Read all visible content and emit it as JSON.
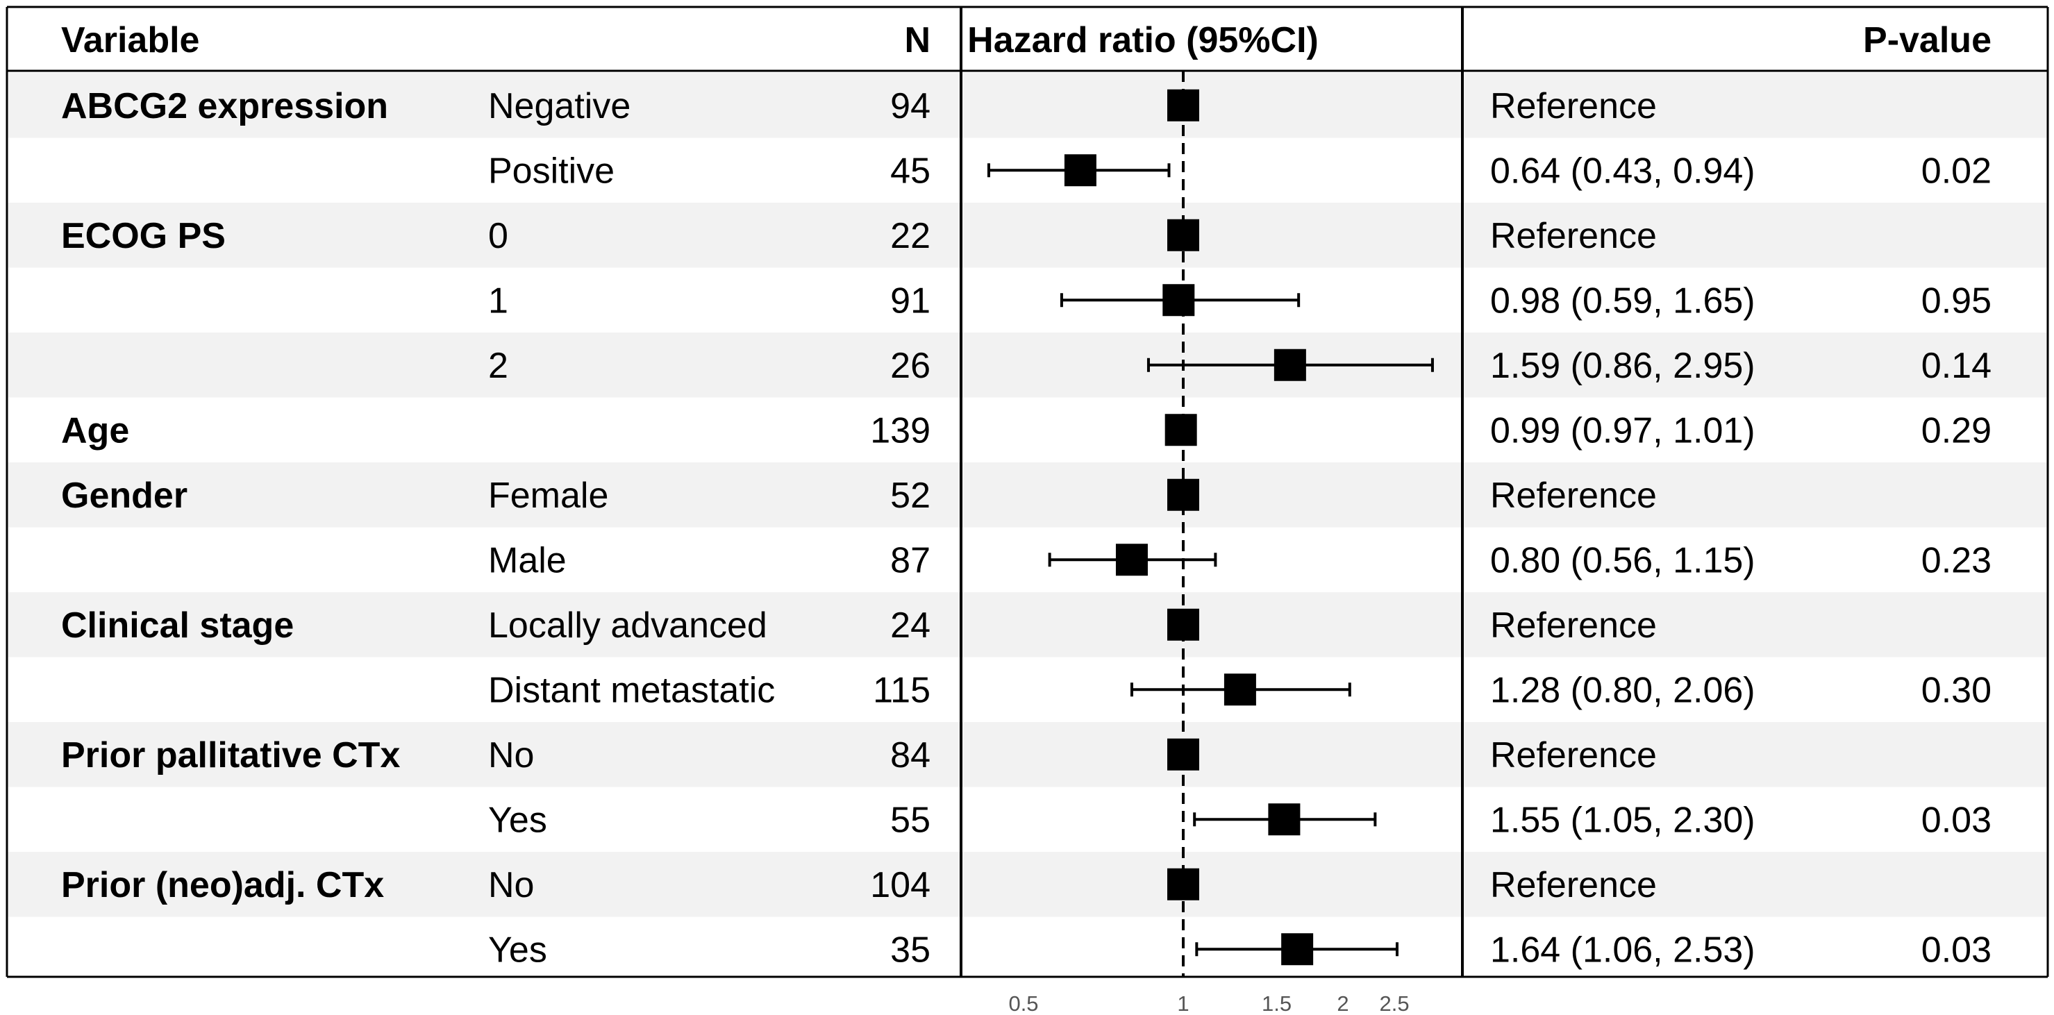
{
  "colors": {
    "stripe": "#f2f2f2",
    "background": "#ffffff",
    "ink": "#000000",
    "tick_text": "#555555"
  },
  "chart_data": {
    "type": "forest",
    "scale": "log",
    "reference_line": 1,
    "headers": {
      "variable": "Variable",
      "n": "N",
      "hr": "Hazard ratio (95%CI)",
      "p": "P-value"
    },
    "x_range": [
      0.35,
      3.0
    ],
    "x_ticks": [
      {
        "value": 0.5,
        "label": "0.5"
      },
      {
        "value": 1,
        "label": "1"
      },
      {
        "value": 1.5,
        "label": "1.5"
      },
      {
        "value": 2,
        "label": "2"
      },
      {
        "value": 2.5,
        "label": "2.5"
      }
    ],
    "rows": [
      {
        "variable": "ABCG2 expression",
        "level": "Negative",
        "n": "94",
        "hr": 1,
        "lo": null,
        "hi": null,
        "ci_text": "Reference",
        "p": ""
      },
      {
        "variable": "",
        "level": "Positive",
        "n": "45",
        "hr": 0.64,
        "lo": 0.43,
        "hi": 0.94,
        "ci_text": "0.64 (0.43, 0.94)",
        "p": "0.02"
      },
      {
        "variable": "ECOG PS",
        "level": "0",
        "n": "22",
        "hr": 1,
        "lo": null,
        "hi": null,
        "ci_text": "Reference",
        "p": ""
      },
      {
        "variable": "",
        "level": "1",
        "n": "91",
        "hr": 0.98,
        "lo": 0.59,
        "hi": 1.65,
        "ci_text": "0.98 (0.59, 1.65)",
        "p": "0.95"
      },
      {
        "variable": "",
        "level": "2",
        "n": "26",
        "hr": 1.59,
        "lo": 0.86,
        "hi": 2.95,
        "ci_text": "1.59 (0.86, 2.95)",
        "p": "0.14"
      },
      {
        "variable": "Age",
        "level": "",
        "n": "139",
        "hr": 0.99,
        "lo": 0.97,
        "hi": 1.01,
        "ci_text": "0.99 (0.97, 1.01)",
        "p": "0.29"
      },
      {
        "variable": "Gender",
        "level": "Female",
        "n": "52",
        "hr": 1,
        "lo": null,
        "hi": null,
        "ci_text": "Reference",
        "p": ""
      },
      {
        "variable": "",
        "level": "Male",
        "n": "87",
        "hr": 0.8,
        "lo": 0.56,
        "hi": 1.15,
        "ci_text": "0.80 (0.56, 1.15)",
        "p": "0.23"
      },
      {
        "variable": "Clinical stage",
        "level": "Locally advanced",
        "n": "24",
        "hr": 1,
        "lo": null,
        "hi": null,
        "ci_text": "Reference",
        "p": ""
      },
      {
        "variable": "",
        "level": "Distant metastatic",
        "n": "115",
        "hr": 1.28,
        "lo": 0.8,
        "hi": 2.06,
        "ci_text": "1.28 (0.80, 2.06)",
        "p": "0.30"
      },
      {
        "variable": "Prior pallitative CTx",
        "level": "No",
        "n": "84",
        "hr": 1,
        "lo": null,
        "hi": null,
        "ci_text": "Reference",
        "p": ""
      },
      {
        "variable": "",
        "level": "Yes",
        "n": "55",
        "hr": 1.55,
        "lo": 1.05,
        "hi": 2.3,
        "ci_text": "1.55 (1.05, 2.30)",
        "p": "0.03"
      },
      {
        "variable": "Prior (neo)adj. CTx",
        "level": "No",
        "n": "104",
        "hr": 1,
        "lo": null,
        "hi": null,
        "ci_text": "Reference",
        "p": ""
      },
      {
        "variable": "",
        "level": "Yes",
        "n": "35",
        "hr": 1.64,
        "lo": 1.06,
        "hi": 2.53,
        "ci_text": "1.64 (1.06, 2.53)",
        "p": "0.03"
      }
    ]
  }
}
